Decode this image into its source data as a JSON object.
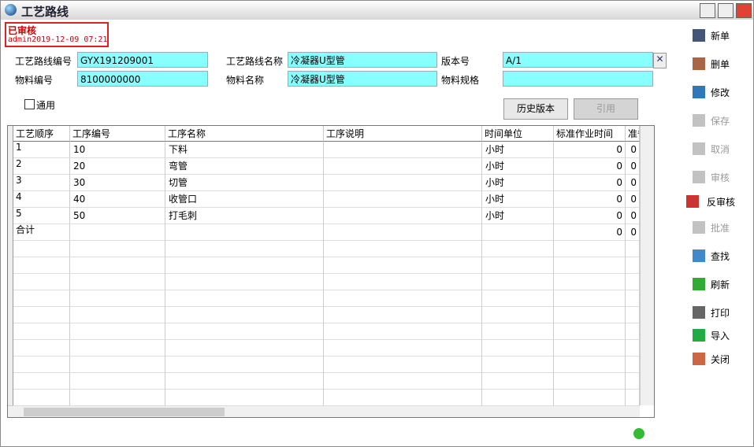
{
  "window": {
    "title": "工艺路线"
  },
  "status": {
    "label": "已审核",
    "info": "admin2019-12-09 07:21"
  },
  "form": {
    "fields": [
      {
        "label": "工艺路线编号",
        "value": "GYX191209001"
      },
      {
        "label": "工艺路线名称",
        "value": "冷凝器U型管"
      },
      {
        "label": "版本号",
        "value": "A/1"
      },
      {
        "label": "物料编号",
        "value": "8100000000"
      },
      {
        "label": "物料名称",
        "value": "冷凝器U型管"
      },
      {
        "label": "物料规格"
      }
    ]
  },
  "checkbox": {
    "label": "通用",
    "checked": false
  },
  "buttons": [
    {
      "label": "历史版本",
      "enabled": true
    },
    {
      "label": "引用",
      "enabled": false
    }
  ],
  "table": {
    "columns": [
      "工艺顺序",
      "工序编号",
      "工序名称",
      "工序说明",
      "时间单位",
      "标准作业时间",
      "准备"
    ],
    "rows": [
      {
        "seq": "1",
        "code": "10",
        "name": "下料",
        "unit": "小时",
        "std_time": 0,
        "prep_time": 0
      },
      {
        "seq": "2",
        "code": "20",
        "name": "弯管",
        "unit": "小时",
        "std_time": 0,
        "prep_time": 0
      },
      {
        "seq": "3",
        "code": "30",
        "name": "切管",
        "unit": "小时",
        "std_time": 0,
        "prep_time": 0
      },
      {
        "seq": "4",
        "code": "40",
        "name": "收管口",
        "unit": "小时",
        "std_time": 0,
        "prep_time": 0
      },
      {
        "seq": "5",
        "code": "50",
        "name": "打毛刺",
        "unit": "小时",
        "std_time": 0,
        "prep_time": 0
      }
    ],
    "total": {
      "seq": "合计",
      "std_time": 0,
      "prep_time": 0
    }
  },
  "toolbar": [
    {
      "label": "新单",
      "enabled": true
    },
    {
      "label": "删单",
      "enabled": true
    },
    {
      "label": "修改",
      "enabled": true
    },
    {
      "label": "保存",
      "enabled": false
    },
    {
      "label": "取消",
      "enabled": false
    },
    {
      "label": "审核",
      "enabled": false
    },
    {
      "label": "反审核",
      "enabled": true
    },
    {
      "label": "批准",
      "enabled": false
    },
    {
      "label": "查找",
      "enabled": true
    },
    {
      "label": "刷新",
      "enabled": true
    },
    {
      "label": "打印",
      "enabled": true
    },
    {
      "label": "导入",
      "enabled": true
    },
    {
      "label": "关闭",
      "enabled": true
    }
  ]
}
